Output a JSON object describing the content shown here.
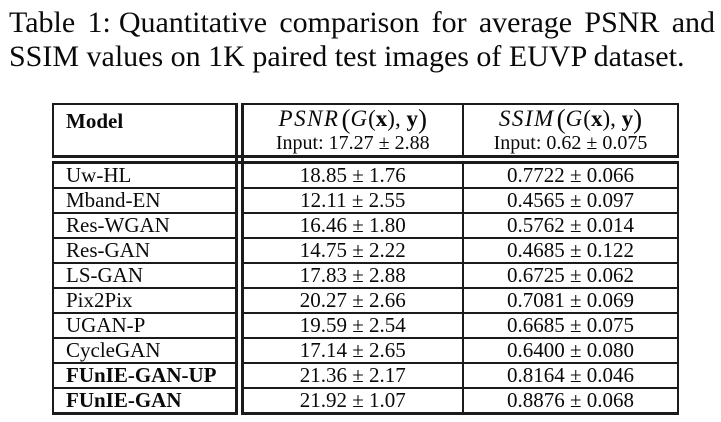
{
  "caption": {
    "label": "Table 1:",
    "line1_rest": "Quantitative comparison for average PSNR and",
    "line2": "SSIM values on 1K paired test images of EUVP dataset."
  },
  "table": {
    "model_header": "Model",
    "psnr_header": {
      "math": [
        {
          "t": "PSNR",
          "s": "fn"
        },
        {
          "t": "(",
          "s": "big"
        },
        {
          "t": "G",
          "s": "it"
        },
        {
          "t": "(",
          "s": "rm"
        },
        {
          "t": "x",
          "s": "bf"
        },
        {
          "t": ")",
          "s": "rm"
        },
        {
          "t": ", ",
          "s": "rm"
        },
        {
          "t": "y",
          "s": "bf"
        },
        {
          "t": ")",
          "s": "big"
        }
      ],
      "input_label": "Input:",
      "input_value": "17.27 ± 2.88"
    },
    "ssim_header": {
      "math": [
        {
          "t": "SSIM",
          "s": "fn"
        },
        {
          "t": "(",
          "s": "big"
        },
        {
          "t": "G",
          "s": "it"
        },
        {
          "t": "(",
          "s": "rm"
        },
        {
          "t": "x",
          "s": "bf"
        },
        {
          "t": ")",
          "s": "rm"
        },
        {
          "t": ", ",
          "s": "rm"
        },
        {
          "t": "y",
          "s": "bf"
        },
        {
          "t": ")",
          "s": "big"
        }
      ],
      "input_label": "Input:",
      "input_value": "0.62 ± 0.075"
    },
    "rows": [
      {
        "model": "Uw-HL",
        "psnr": "18.85 ± 1.76",
        "ssim": "0.7722 ± 0.066",
        "bold": false
      },
      {
        "model": "Mband-EN",
        "psnr": "12.11 ± 2.55",
        "ssim": "0.4565 ± 0.097",
        "bold": false
      },
      {
        "model": "Res-WGAN",
        "psnr": "16.46 ± 1.80",
        "ssim": "0.5762 ± 0.014",
        "bold": false
      },
      {
        "model": "Res-GAN",
        "psnr": "14.75 ± 2.22",
        "ssim": "0.4685 ± 0.122",
        "bold": false
      },
      {
        "model": "LS-GAN",
        "psnr": "17.83 ± 2.88",
        "ssim": "0.6725 ± 0.062",
        "bold": false
      },
      {
        "model": "Pix2Pix",
        "psnr": "20.27 ± 2.66",
        "ssim": "0.7081 ± 0.069",
        "bold": false
      },
      {
        "model": "UGAN-P",
        "psnr": "19.59 ± 2.54",
        "ssim": "0.6685 ± 0.075",
        "bold": false
      },
      {
        "model": "CycleGAN",
        "psnr": "17.14 ± 2.65",
        "ssim": "0.6400 ± 0.080",
        "bold": false
      },
      {
        "model": "FUnIE-GAN-UP",
        "psnr": "21.36 ± 2.17",
        "ssim": "0.8164 ± 0.046",
        "bold": true
      },
      {
        "model": "FUnIE-GAN",
        "psnr": "21.92 ± 1.07",
        "ssim": "0.8876 ± 0.068",
        "bold": true
      }
    ],
    "colors": {
      "text": "#0a0a0a",
      "rule": "#1b1b1b",
      "background": "#ffffff"
    }
  }
}
